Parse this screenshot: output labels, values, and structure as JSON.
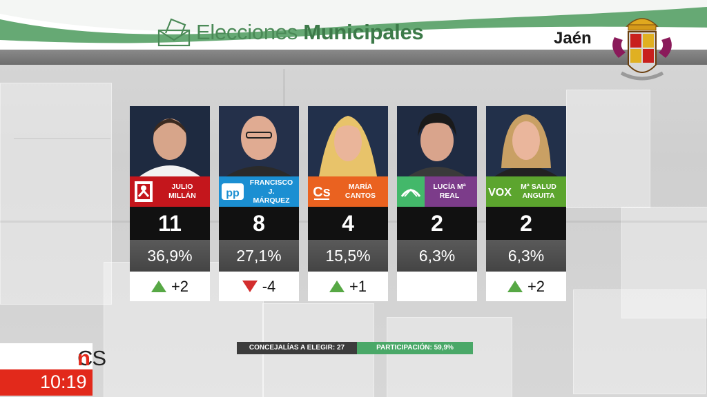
{
  "header": {
    "title_light": "Elecciones ",
    "title_bold": "Municipales",
    "city": "Jaén",
    "icons": [
      "envelope-ballot-icon",
      "coat-of-arms-icon"
    ]
  },
  "candidates": [
    {
      "name1": "JULIO",
      "name2": "MILLÁN",
      "seats": "11",
      "percent": "36,9%",
      "change": "+2",
      "trend": "up",
      "party_logo": "psoe-logo",
      "color": "#c4161c"
    },
    {
      "name1": "FRANCISCO J.",
      "name2": "MÁRQUEZ",
      "seats": "8",
      "percent": "27,1%",
      "change": "-4",
      "trend": "down",
      "party_logo": "pp-logo",
      "color": "#1b8fd2"
    },
    {
      "name1": "MARÍA",
      "name2": "CANTOS",
      "seats": "4",
      "percent": "15,5%",
      "change": "+1",
      "trend": "up",
      "party_logo": "cs-logo",
      "color": "#ea6220"
    },
    {
      "name1": "LUCÍA Mª",
      "name2": "REAL",
      "seats": "2",
      "percent": "6,3%",
      "change": "",
      "trend": "none",
      "party_logo": "adelante-logo",
      "color": "#7c3c8a"
    },
    {
      "name1": "Mª SALUD",
      "name2": "ANGUITA",
      "seats": "2",
      "percent": "6,3%",
      "change": "+2",
      "trend": "up",
      "party_logo": "vox-logo",
      "color": "#5ca52e"
    }
  ],
  "footer": {
    "concejalias": "CONCEJALÍAS A ELEGIR: 27",
    "participacion": "PARTICIPACIÓN: 59,9%"
  },
  "channel": {
    "logo_cs": "CS",
    "logo_n": "n",
    "time": "10:19"
  }
}
